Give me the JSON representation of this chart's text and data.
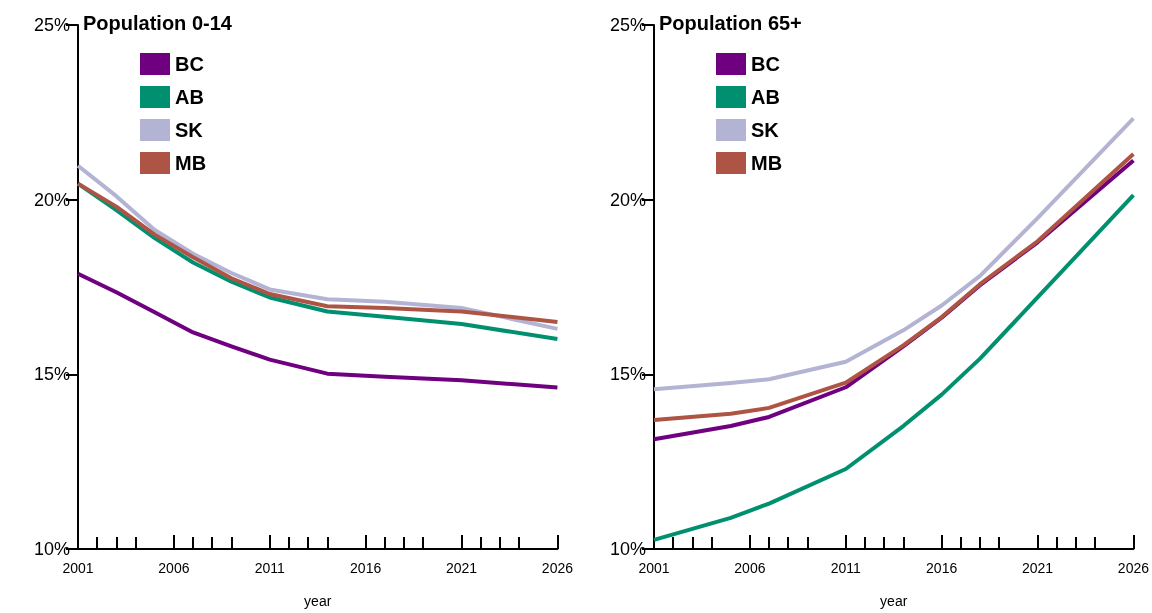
{
  "chart_data": [
    {
      "type": "line",
      "title": "Population 0-14",
      "xlabel": "year",
      "x": [
        2001,
        2003,
        2005,
        2007,
        2009,
        2011,
        2014,
        2017,
        2021,
        2026
      ],
      "series": [
        {
          "name": "BC",
          "color": "#6f007f",
          "values": [
            17.88,
            17.35,
            16.78,
            16.2,
            15.8,
            15.42,
            15.02,
            14.93,
            14.83,
            14.62
          ]
        },
        {
          "name": "AB",
          "color": "#009070",
          "values": [
            20.46,
            19.7,
            18.9,
            18.2,
            17.65,
            17.2,
            16.8,
            16.65,
            16.44,
            16.01
          ]
        },
        {
          "name": "SK",
          "color": "#b3b3d3",
          "values": [
            20.97,
            20.1,
            19.13,
            18.45,
            17.9,
            17.43,
            17.15,
            17.08,
            16.9,
            16.3
          ]
        },
        {
          "name": "MB",
          "color": "#ae5444",
          "values": [
            20.46,
            19.8,
            19.0,
            18.35,
            17.75,
            17.3,
            16.95,
            16.9,
            16.8,
            16.5
          ]
        }
      ],
      "xlim": [
        2001,
        2026
      ],
      "xticks": [
        2001,
        2006,
        2011,
        2016,
        2021,
        2026
      ],
      "ylim": [
        10,
        25
      ],
      "yticks": [
        {
          "value": 10,
          "label": "10%"
        },
        {
          "value": 15,
          "label": "15%"
        },
        {
          "value": 20,
          "label": "20%"
        },
        {
          "value": 25,
          "label": "25%"
        }
      ],
      "grid": false,
      "legend": "top",
      "marker": "none",
      "line_style": "solid"
    },
    {
      "type": "line",
      "title": "Population 65+",
      "xlabel": "year",
      "x": [
        2001,
        2005,
        2007,
        2011,
        2014,
        2016,
        2018,
        2021,
        2026
      ],
      "series": [
        {
          "name": "BC",
          "color": "#6f007f",
          "values": [
            13.14,
            13.52,
            13.78,
            14.63,
            15.8,
            16.62,
            17.55,
            18.78,
            21.12
          ]
        },
        {
          "name": "AB",
          "color": "#009070",
          "values": [
            10.26,
            10.89,
            11.3,
            12.29,
            13.52,
            14.42,
            15.45,
            17.2,
            20.13
          ]
        },
        {
          "name": "SK",
          "color": "#b3b3d3",
          "values": [
            14.57,
            14.75,
            14.86,
            15.36,
            16.26,
            16.97,
            17.82,
            19.47,
            22.33
          ]
        },
        {
          "name": "MB",
          "color": "#ae5444",
          "values": [
            13.69,
            13.87,
            14.04,
            14.76,
            15.83,
            16.64,
            17.58,
            18.81,
            21.31
          ]
        }
      ],
      "xlim": [
        2001,
        2026
      ],
      "xticks": [
        2001,
        2006,
        2011,
        2016,
        2021,
        2026
      ],
      "ylim": [
        10,
        25
      ],
      "yticks": [
        {
          "value": 10,
          "label": "10%"
        },
        {
          "value": 15,
          "label": "15%"
        },
        {
          "value": 20,
          "label": "20%"
        },
        {
          "value": 25,
          "label": "25%"
        }
      ],
      "grid": false,
      "legend": "top",
      "marker": "none",
      "line_style": "solid"
    }
  ]
}
